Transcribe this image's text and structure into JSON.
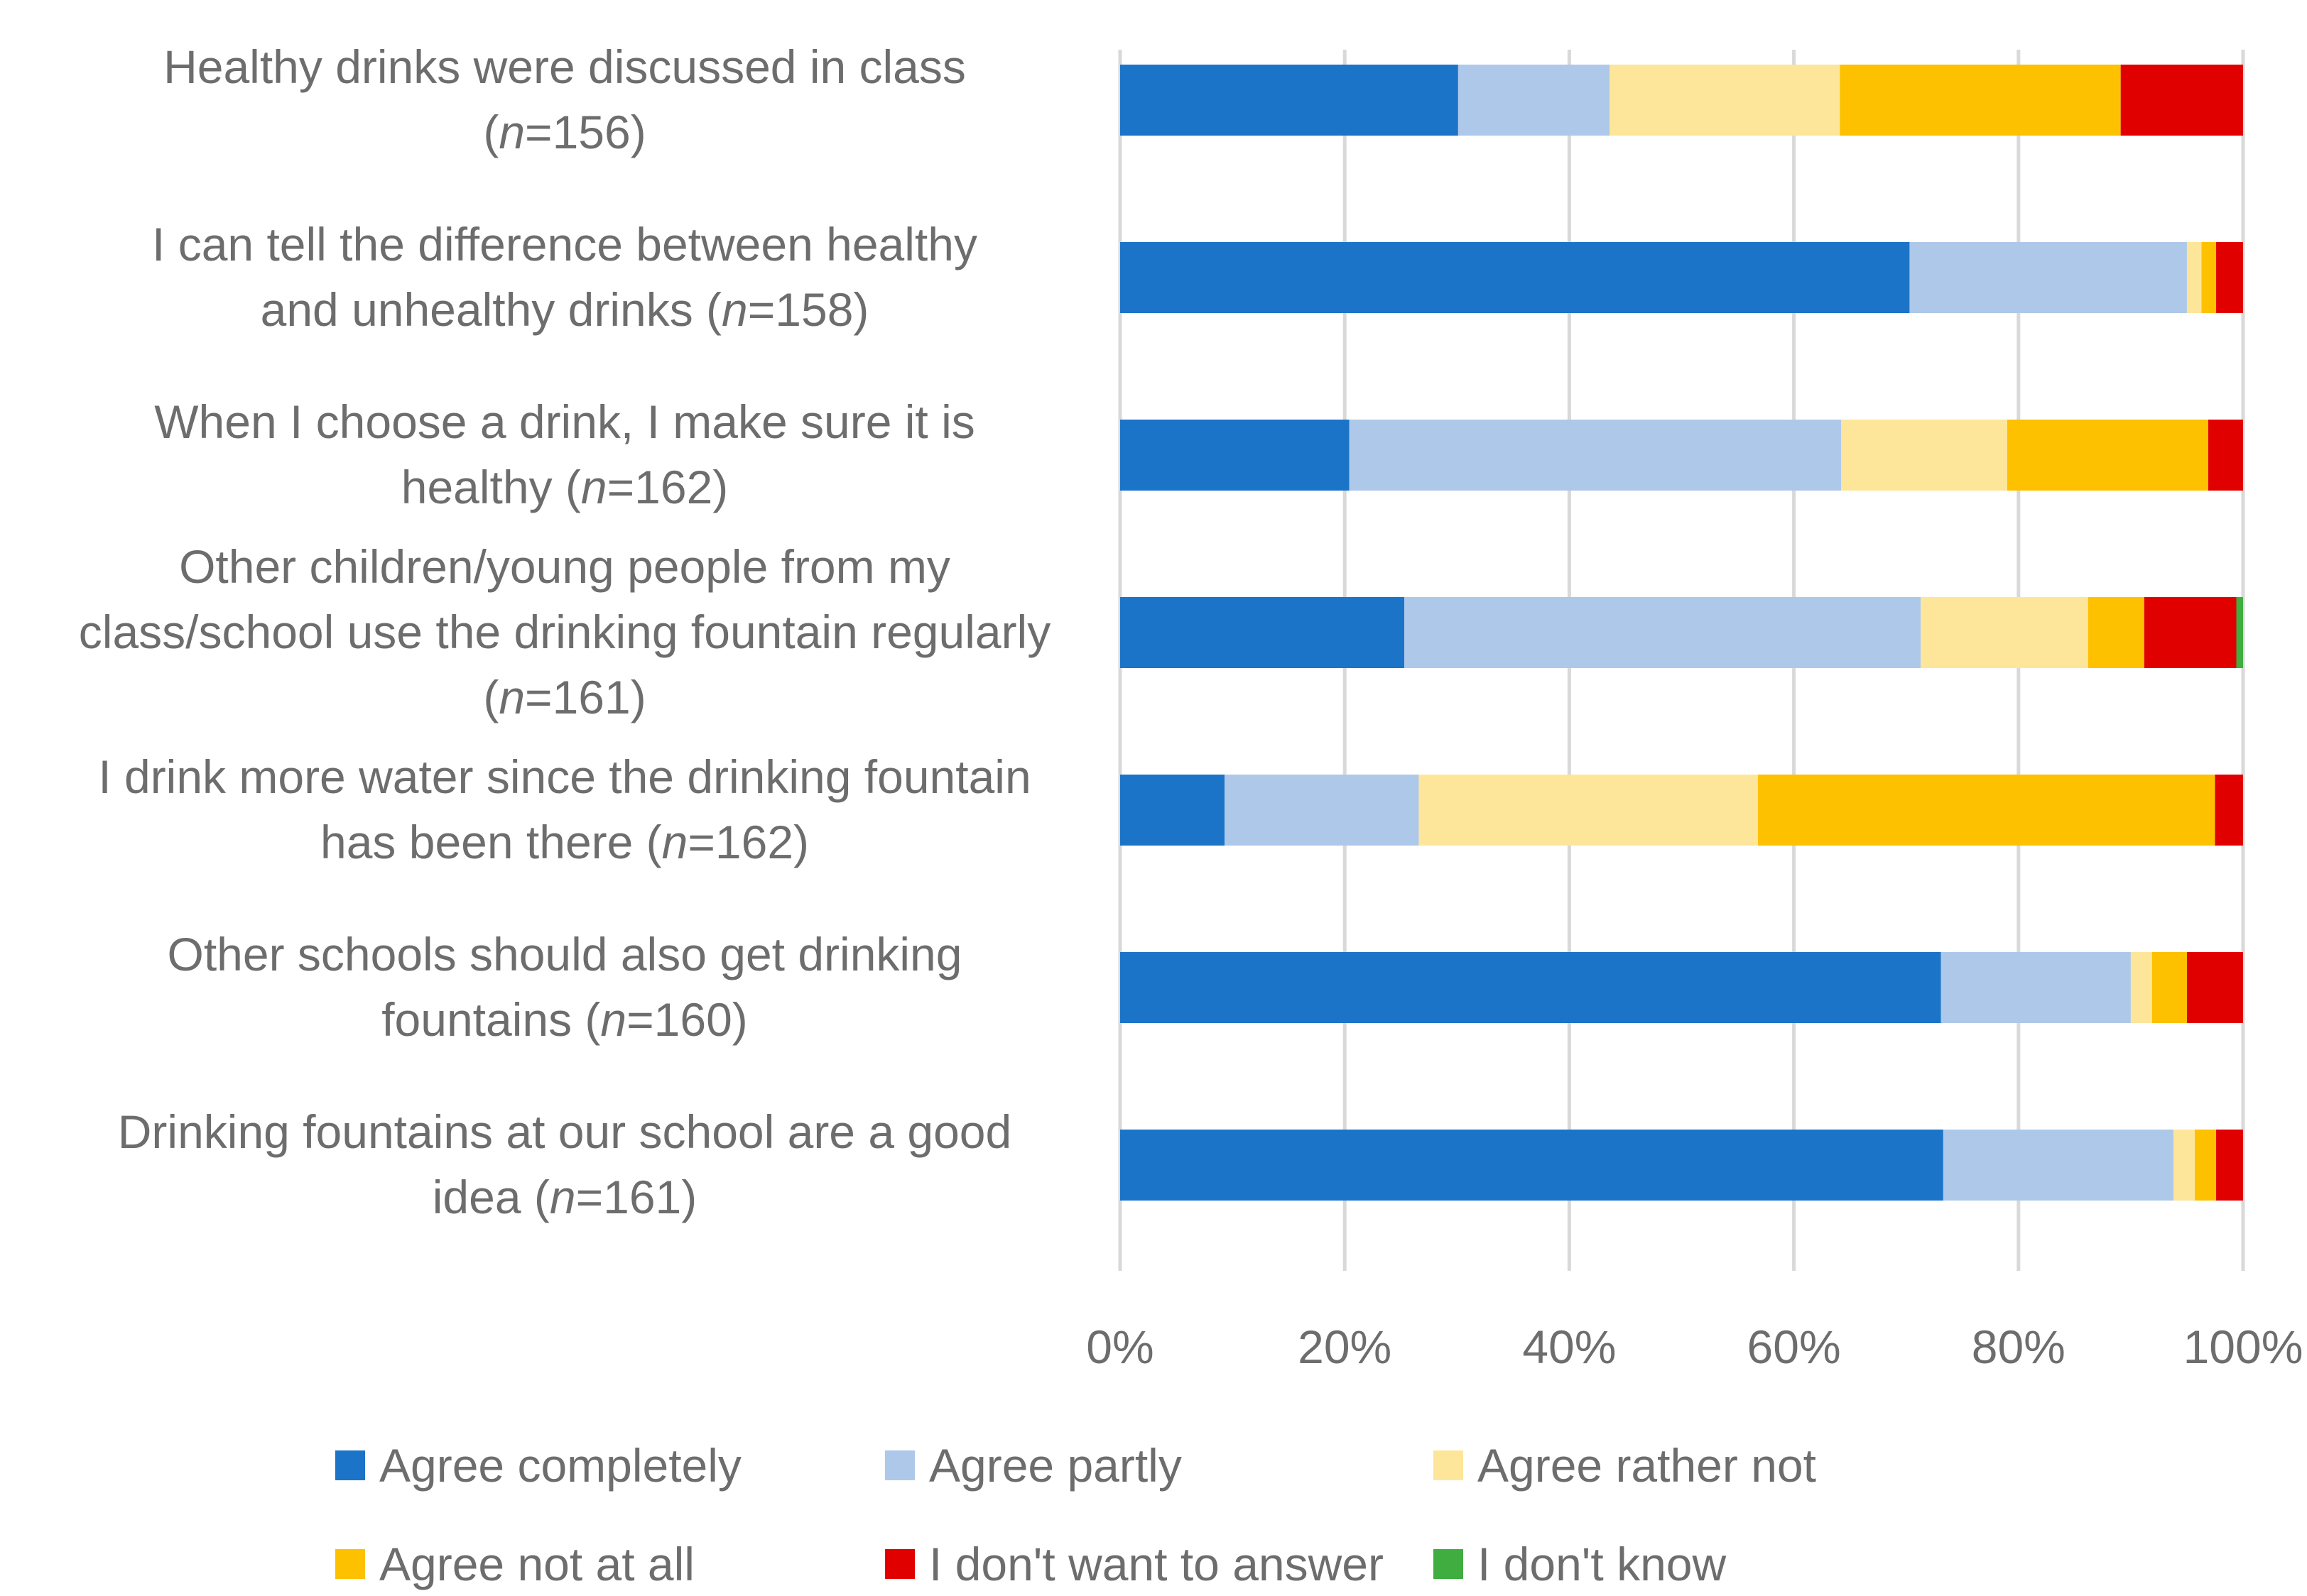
{
  "chart_data": {
    "type": "bar",
    "orientation": "horizontal",
    "stacked": "percent",
    "title": "",
    "xlabel": "",
    "ylabel": "",
    "xlim": [
      0,
      100
    ],
    "x_ticks": [
      "0%",
      "20%",
      "40%",
      "60%",
      "80%",
      "100%"
    ],
    "grid": true,
    "legend_position": "bottom",
    "categories": [
      {
        "lines": [
          "Healthy drinks were discussed in class",
          "(|n|=156)"
        ]
      },
      {
        "lines": [
          "I can tell the difference between healthy",
          "and unhealthy drinks (|n|=158)"
        ]
      },
      {
        "lines": [
          "When I choose a drink, I make sure it is",
          "healthy (|n|=162)"
        ]
      },
      {
        "lines": [
          "Other children/young people from my",
          "class/school use the drinking fountain regularly",
          "(|n|=161)"
        ]
      },
      {
        "lines": [
          "I drink more water since the drinking fountain",
          "has been there (|n|=162)"
        ]
      },
      {
        "lines": [
          "Other schools should also get drinking",
          "fountains  (|n|=160)"
        ]
      },
      {
        "lines": [
          "Drinking fountains at our school are a good",
          "idea (|n|=161)"
        ]
      }
    ],
    "series": [
      {
        "name": "Agree completely",
        "color": "#1b74c8",
        "values": [
          30.1,
          70.3,
          20.4,
          25.3,
          9.3,
          73.1,
          73.3
        ]
      },
      {
        "name": "Agree partly",
        "color": "#aec8e9",
        "values": [
          13.5,
          24.7,
          43.8,
          46.0,
          17.3,
          16.9,
          20.5
        ]
      },
      {
        "name": "Agree rather not",
        "color": "#fde699",
        "values": [
          20.5,
          1.3,
          14.8,
          14.9,
          30.2,
          1.9,
          1.9
        ]
      },
      {
        "name": "Agree not at all",
        "color": "#fdc100",
        "values": [
          25.0,
          1.3,
          17.9,
          5.0,
          40.7,
          3.1,
          1.9
        ]
      },
      {
        "name": "I don't want to answer",
        "color": "#e10000",
        "values": [
          10.9,
          2.4,
          3.1,
          8.2,
          2.5,
          5.0,
          2.4
        ]
      },
      {
        "name": "I don't know",
        "color": "#3fad3f",
        "values": [
          0,
          0,
          0,
          0.6,
          0,
          0,
          0
        ]
      }
    ]
  }
}
